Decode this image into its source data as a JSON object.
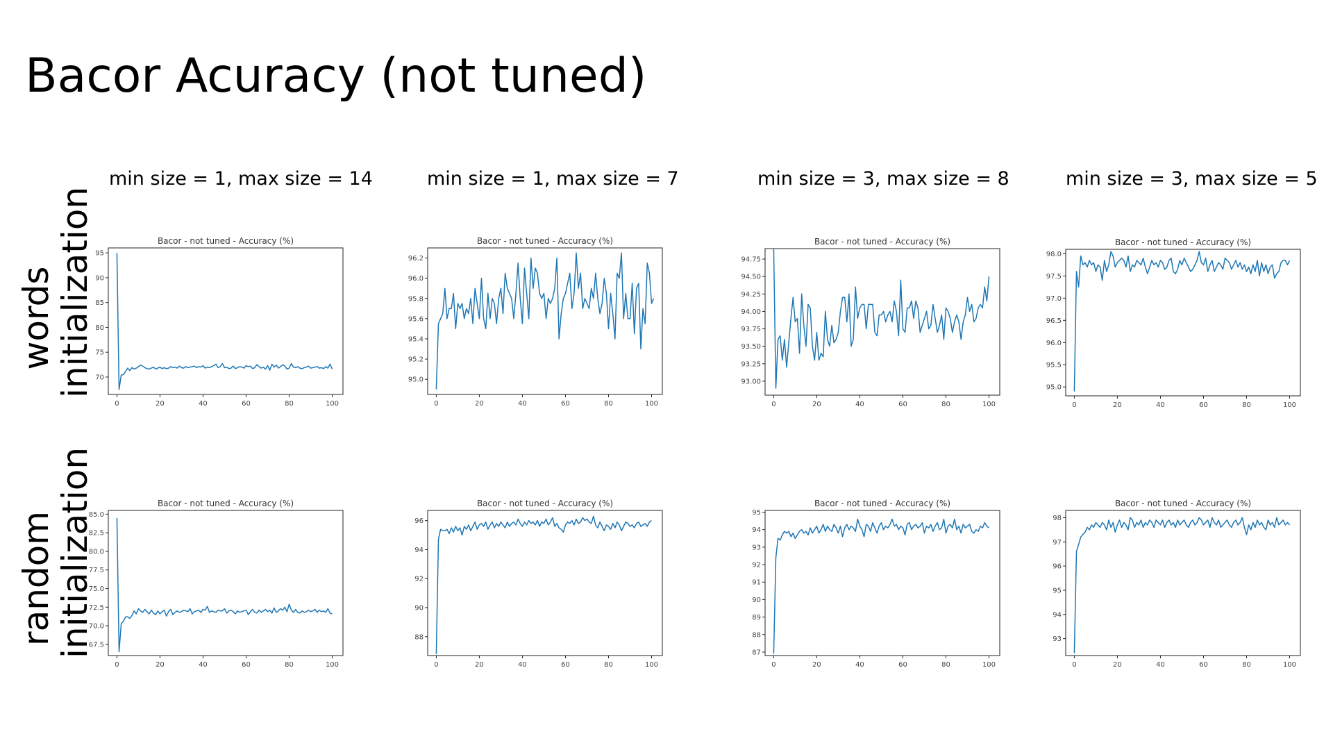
{
  "slide": {
    "title": "Bacor Acuracy (not tuned)"
  },
  "columns": [
    "min size = 1, max size = 14",
    "min size = 1, max size = 7",
    "min size = 3, max size = 8",
    "min size = 3, max size = 5"
  ],
  "rows": [
    [
      "words",
      "initialization"
    ],
    [
      "random",
      "initialization"
    ]
  ],
  "colors": {
    "line": "#1f77b4"
  },
  "chart_data": [
    {
      "type": "line",
      "title": "Bacor - not tuned - Accuracy (%)",
      "xlim": [
        -4,
        105
      ],
      "ylim": [
        66.5,
        96
      ],
      "xticks": [
        0,
        20,
        40,
        60,
        80,
        100
      ],
      "yticks": [
        70,
        75,
        80,
        85,
        90,
        95
      ],
      "ytick_labels": [
        "70",
        "75",
        "80",
        "85",
        "90",
        "95"
      ],
      "values": [
        95,
        67.5,
        70.4,
        70.5,
        71.1,
        71.8,
        71.3,
        71.9,
        71.6,
        71.8,
        72.1,
        72.4,
        72.2,
        71.9,
        71.7,
        71.6,
        71.8,
        72,
        71.6,
        71.8,
        72,
        71.7,
        71.9,
        71.7,
        71.8,
        72.1,
        71.9,
        72,
        71.8,
        72.2,
        71.9,
        71.8,
        72.1,
        71.9,
        72,
        72.1,
        72.2,
        71.9,
        72.1,
        72,
        72.3,
        71.8,
        72,
        71.9,
        72.1,
        72.3,
        72.6,
        71.9,
        72.1,
        72.7,
        71.9,
        72,
        71.7,
        71.8,
        72.2,
        71.7,
        71.9,
        72.1,
        72,
        71.8,
        72.3,
        72.1,
        72.2,
        71.7,
        71.9,
        72.5,
        72.1,
        71.8,
        72,
        71.6,
        72.3,
        71.4,
        72.6,
        72,
        72.4,
        71.8,
        72.1,
        72.5,
        72.2,
        71.6,
        71.8,
        72.7,
        72,
        71.9,
        72.1,
        71.8,
        71.7,
        71.9,
        72,
        72.2,
        71.8,
        71.9,
        72,
        72.1,
        71.8,
        71.9,
        71.7,
        72.1,
        71.8,
        72.6,
        71.6
      ]
    },
    {
      "type": "line",
      "title": "Bacor - not tuned - Accuracy (%)",
      "xlim": [
        -4,
        105
      ],
      "ylim": [
        94.85,
        96.3
      ],
      "xticks": [
        0,
        20,
        40,
        60,
        80,
        100
      ],
      "yticks": [
        95.0,
        95.2,
        95.4,
        95.6,
        95.8,
        96.0,
        96.2
      ],
      "ytick_labels": [
        "95.0",
        "95.2",
        "95.4",
        "95.6",
        "95.8",
        "96.0",
        "96.2"
      ],
      "values": [
        94.9,
        95.55,
        95.6,
        95.65,
        95.9,
        95.6,
        95.7,
        95.7,
        95.85,
        95.5,
        95.75,
        95.7,
        95.75,
        95.6,
        95.7,
        95.65,
        95.8,
        95.55,
        95.9,
        95.75,
        95.6,
        96,
        95.6,
        95.5,
        95.85,
        95.6,
        95.8,
        95.75,
        95.55,
        95.8,
        95.9,
        95.65,
        96.05,
        95.9,
        95.85,
        95.8,
        95.6,
        95.85,
        96.15,
        95.8,
        95.55,
        96.1,
        95.85,
        95.6,
        96.2,
        95.9,
        96.1,
        96.05,
        95.85,
        95.8,
        95.85,
        95.6,
        95.8,
        95.75,
        95.8,
        95.9,
        96.2,
        95.4,
        95.65,
        95.8,
        95.85,
        95.95,
        96.05,
        95.7,
        95.85,
        96.25,
        95.9,
        96.05,
        95.7,
        95.8,
        95.75,
        95.7,
        95.9,
        95.8,
        96.05,
        95.8,
        95.65,
        95.75,
        96,
        95.85,
        95.5,
        95.85,
        95.65,
        95.4,
        96.05,
        96,
        96.25,
        95.6,
        95.85,
        95.6,
        95.6,
        95.95,
        95.45,
        95.9,
        95.95,
        95.3,
        95.7,
        95.55,
        96.15,
        96.05,
        95.75,
        95.8
      ]
    },
    {
      "type": "line",
      "title": "Bacor - not tuned - Accuracy (%)",
      "xlim": [
        -4,
        105
      ],
      "ylim": [
        92.8,
        94.9
      ],
      "xticks": [
        0,
        20,
        40,
        60,
        80,
        100
      ],
      "yticks": [
        93.0,
        93.25,
        93.5,
        93.75,
        94.0,
        94.25,
        94.5,
        94.75
      ],
      "ytick_labels": [
        "93.00",
        "93.25",
        "93.50",
        "93.75",
        "94.00",
        "94.25",
        "94.50",
        "94.75"
      ],
      "values": [
        94.9,
        92.9,
        93.6,
        93.65,
        93.3,
        93.6,
        93.2,
        93.55,
        93.9,
        94.2,
        93.85,
        93.9,
        93.4,
        94.25,
        93.8,
        93.5,
        94.1,
        94.05,
        93.5,
        93.3,
        93.7,
        93.3,
        93.4,
        93.35,
        94,
        93.6,
        93.5,
        93.8,
        93.55,
        93.6,
        93.7,
        94,
        94.2,
        94.2,
        93.85,
        94.25,
        93.5,
        93.6,
        94.35,
        93.9,
        94.05,
        94.1,
        94.1,
        93.75,
        94.1,
        94.1,
        94.1,
        93.7,
        93.65,
        93.95,
        93.95,
        94,
        93.85,
        93.95,
        94,
        93.85,
        94.15,
        94,
        93.65,
        94.45,
        93.75,
        93.7,
        94.05,
        94.05,
        94.15,
        93.9,
        94.15,
        94.05,
        93.7,
        93.8,
        93.9,
        94,
        93.75,
        93.8,
        94.1,
        93.9,
        93.7,
        93.8,
        93.95,
        93.6,
        94.05,
        94,
        93.9,
        93.7,
        93.85,
        93.95,
        93.85,
        93.6,
        93.85,
        93.95,
        94.2,
        94,
        94.1,
        93.85,
        93.9,
        94.05,
        94.1,
        94.05,
        94.35,
        94.15,
        94.5
      ]
    },
    {
      "type": "line",
      "title": "Bacor - not tuned - Accuracy (%)",
      "xlim": [
        -4,
        105
      ],
      "ylim": [
        94.8,
        98.1
      ],
      "xticks": [
        0,
        20,
        40,
        60,
        80,
        100
      ],
      "yticks": [
        95.0,
        95.5,
        96.0,
        96.5,
        97.0,
        97.5,
        98.0
      ],
      "ytick_labels": [
        "95.0",
        "95.5",
        "96.0",
        "96.5",
        "97.0",
        "97.5",
        "98.0"
      ],
      "values": [
        94.9,
        97.6,
        97.25,
        97.95,
        97.75,
        97.8,
        97.7,
        97.85,
        97.75,
        97.8,
        97.6,
        97.75,
        97.7,
        97.4,
        97.85,
        97.6,
        97.75,
        98.05,
        97.95,
        97.7,
        97.8,
        97.85,
        97.9,
        97.85,
        97.7,
        97.95,
        97.6,
        97.75,
        97.7,
        97.85,
        97.8,
        97.75,
        97.9,
        97.7,
        97.55,
        97.7,
        97.85,
        97.75,
        97.8,
        97.7,
        97.85,
        97.8,
        97.65,
        97.7,
        97.85,
        97.9,
        97.6,
        97.55,
        97.65,
        97.85,
        97.75,
        97.9,
        97.8,
        97.7,
        97.6,
        97.65,
        97.75,
        97.85,
        98.05,
        97.8,
        97.75,
        97.9,
        97.6,
        97.75,
        97.85,
        97.6,
        97.7,
        97.8,
        97.75,
        97.65,
        97.9,
        97.85,
        97.8,
        97.65,
        97.75,
        97.85,
        97.7,
        97.8,
        97.65,
        97.75,
        97.6,
        97.7,
        97.55,
        97.75,
        97.6,
        97.85,
        97.5,
        97.8,
        97.6,
        97.75,
        97.55,
        97.7,
        97.75,
        97.45,
        97.55,
        97.6,
        97.8,
        97.85,
        97.85,
        97.75,
        97.85
      ]
    },
    {
      "type": "line",
      "title": "Bacor - not tuned - Accuracy (%)",
      "xlim": [
        -4,
        105
      ],
      "ylim": [
        66,
        85.5
      ],
      "xticks": [
        0,
        20,
        40,
        60,
        80,
        100
      ],
      "yticks": [
        67.5,
        70.0,
        72.5,
        75.0,
        77.5,
        80.0,
        82.5,
        85.0
      ],
      "ytick_labels": [
        "67.5",
        "70.0",
        "72.5",
        "75.0",
        "77.5",
        "80.0",
        "82.5",
        "85.0"
      ],
      "values": [
        84.5,
        66.5,
        70.3,
        70.6,
        71.2,
        71.2,
        71,
        71.4,
        72,
        71.6,
        72.3,
        72,
        71.8,
        72.2,
        71.9,
        71.6,
        72.1,
        71.7,
        71.5,
        72,
        71.6,
        71.9,
        72.1,
        71.3,
        71.9,
        72.2,
        71.5,
        71.8,
        72,
        71.8,
        71.9,
        72.1,
        72,
        71.9,
        72.3,
        71.6,
        71.9,
        72,
        72.1,
        71.8,
        72.2,
        72.1,
        72.6,
        71.8,
        72,
        71.9,
        71.8,
        72.1,
        72,
        72,
        72.3,
        71.7,
        72,
        72.1,
        71.9,
        71.6,
        72,
        71.8,
        71.9,
        72,
        72.1,
        71.5,
        71.9,
        72.2,
        71.8,
        71.7,
        72.1,
        71.8,
        72,
        72.2,
        71.9,
        72.1,
        71.7,
        72.4,
        71.8,
        72,
        72.3,
        72.1,
        72.5,
        71.9,
        72.9,
        72.1,
        71.8,
        72.2,
        71.8,
        71.7,
        72,
        71.8,
        71.9,
        72.1,
        71.9,
        72,
        72.2,
        71.8,
        72.1,
        71.9,
        72,
        71.8,
        72.3,
        71.7,
        71.6
      ]
    },
    {
      "type": "line",
      "title": "Bacor - not tuned - Accuracy (%)",
      "xlim": [
        -4,
        105
      ],
      "ylim": [
        86.7,
        96.7
      ],
      "xticks": [
        0,
        20,
        40,
        60,
        80,
        100
      ],
      "yticks": [
        88,
        90,
        92,
        94,
        96
      ],
      "ytick_labels": [
        "88",
        "90",
        "92",
        "94",
        "96"
      ],
      "values": [
        86.8,
        94.7,
        95.4,
        95.3,
        95.3,
        95.4,
        95.1,
        95.5,
        95.2,
        95.6,
        95.3,
        95.5,
        95,
        95.6,
        95.4,
        95.7,
        95.3,
        95.6,
        95.9,
        95.4,
        95.7,
        95.8,
        95.6,
        95.9,
        95.4,
        95.7,
        95.9,
        95.5,
        95.8,
        95.6,
        95.9,
        95.7,
        95.5,
        95.9,
        95.6,
        95.8,
        95.9,
        95.7,
        96.1,
        95.8,
        95.6,
        95.9,
        95.7,
        96,
        95.8,
        95.9,
        95.7,
        96,
        95.6,
        95.9,
        95.8,
        96.1,
        95.7,
        95.9,
        96.2,
        95.6,
        95.8,
        95.5,
        95.4,
        95.2,
        95.7,
        95.9,
        95.8,
        96,
        95.7,
        96.1,
        95.8,
        95.9,
        96.2,
        96,
        96.1,
        95.9,
        95.8,
        96.3,
        95.7,
        95.5,
        95.9,
        95.6,
        95.3,
        95.7,
        95.6,
        95.4,
        95.8,
        95.5,
        95.9,
        95.7,
        95.3,
        95.6,
        95.9,
        95.8,
        95.6,
        95.7,
        95.5,
        95.8,
        95.9,
        95.6,
        95.7,
        95.8,
        95.6,
        95.9,
        96
      ]
    },
    {
      "type": "line",
      "title": "Bacor - not tuned - Accuracy (%)",
      "xlim": [
        -4,
        105
      ],
      "ylim": [
        86.8,
        95.1
      ],
      "xticks": [
        0,
        20,
        40,
        60,
        80,
        100
      ],
      "yticks": [
        87,
        88,
        89,
        90,
        91,
        92,
        93,
        94,
        95
      ],
      "ytick_labels": [
        "87",
        "88",
        "89",
        "90",
        "91",
        "92",
        "93",
        "94",
        "95"
      ],
      "values": [
        86.9,
        92.4,
        93.5,
        93.4,
        93.7,
        93.9,
        93.8,
        93.9,
        93.6,
        93.8,
        93.5,
        93.7,
        93.9,
        94,
        93.8,
        93.9,
        93.7,
        94.1,
        93.8,
        94,
        94.2,
        93.8,
        94,
        94.3,
        93.9,
        94.2,
        94,
        93.9,
        94.3,
        94.1,
        93.8,
        94.2,
        93.6,
        94.1,
        94.3,
        94,
        94.2,
        94.1,
        93.9,
        94.6,
        94.2,
        94,
        93.6,
        94.3,
        94.2,
        93.9,
        94.4,
        94.1,
        93.8,
        94.2,
        94.4,
        94,
        94.2,
        94.1,
        94.3,
        94.6,
        94.2,
        94.3,
        94,
        94.2,
        94.1,
        93.7,
        94.3,
        94.4,
        94,
        94.2,
        94.3,
        94.1,
        94.2,
        94.4,
        93.8,
        94.2,
        94.1,
        94.3,
        93.9,
        94.2,
        94.4,
        94,
        94.1,
        94.6,
        93.8,
        94.2,
        94.3,
        94.1,
        94.6,
        94,
        94.2,
        93.8,
        94.3,
        94.1,
        94.2,
        94.3,
        93.9,
        93.8,
        94,
        93.9,
        94.2,
        94.1,
        94.4,
        94.2,
        94.1
      ]
    },
    {
      "type": "line",
      "title": "Bacor - not tuned - Accuracy (%)",
      "xlim": [
        -4,
        105
      ],
      "ylim": [
        92.3,
        98.3
      ],
      "xticks": [
        0,
        20,
        40,
        60,
        80,
        100
      ],
      "yticks": [
        93,
        94,
        95,
        96,
        97,
        98
      ],
      "ytick_labels": [
        "93",
        "94",
        "95",
        "96",
        "97",
        "98"
      ],
      "values": [
        92.4,
        96.6,
        96.9,
        97.2,
        97.3,
        97.4,
        97.6,
        97.5,
        97.7,
        97.6,
        97.8,
        97.7,
        97.6,
        97.8,
        97.7,
        97.5,
        97.9,
        97.6,
        97.8,
        97.4,
        97.7,
        97.9,
        97.6,
        97.8,
        97.7,
        97.5,
        98,
        97.9,
        97.6,
        97.8,
        97.7,
        97.9,
        97.6,
        97.8,
        97.7,
        97.9,
        97.8,
        97.6,
        97.9,
        97.8,
        97.7,
        97.9,
        97.6,
        97.8,
        97.9,
        97.7,
        97.8,
        97.6,
        97.9,
        97.7,
        97.8,
        97.9,
        97.7,
        97.6,
        97.8,
        97.9,
        97.7,
        97.8,
        98,
        97.9,
        97.7,
        97.8,
        97.9,
        97.6,
        98,
        97.8,
        97.7,
        97.9,
        97.6,
        97.7,
        97.8,
        97.9,
        97.7,
        97.6,
        97.8,
        97.9,
        97.7,
        97.8,
        98,
        97.6,
        97.3,
        97.7,
        97.5,
        97.8,
        97.6,
        97.9,
        97.7,
        97.8,
        97.6,
        97.5,
        97.9,
        97.7,
        97.8,
        97.6,
        98,
        97.7,
        97.8,
        97.9,
        97.7,
        97.8,
        97.7
      ]
    }
  ]
}
